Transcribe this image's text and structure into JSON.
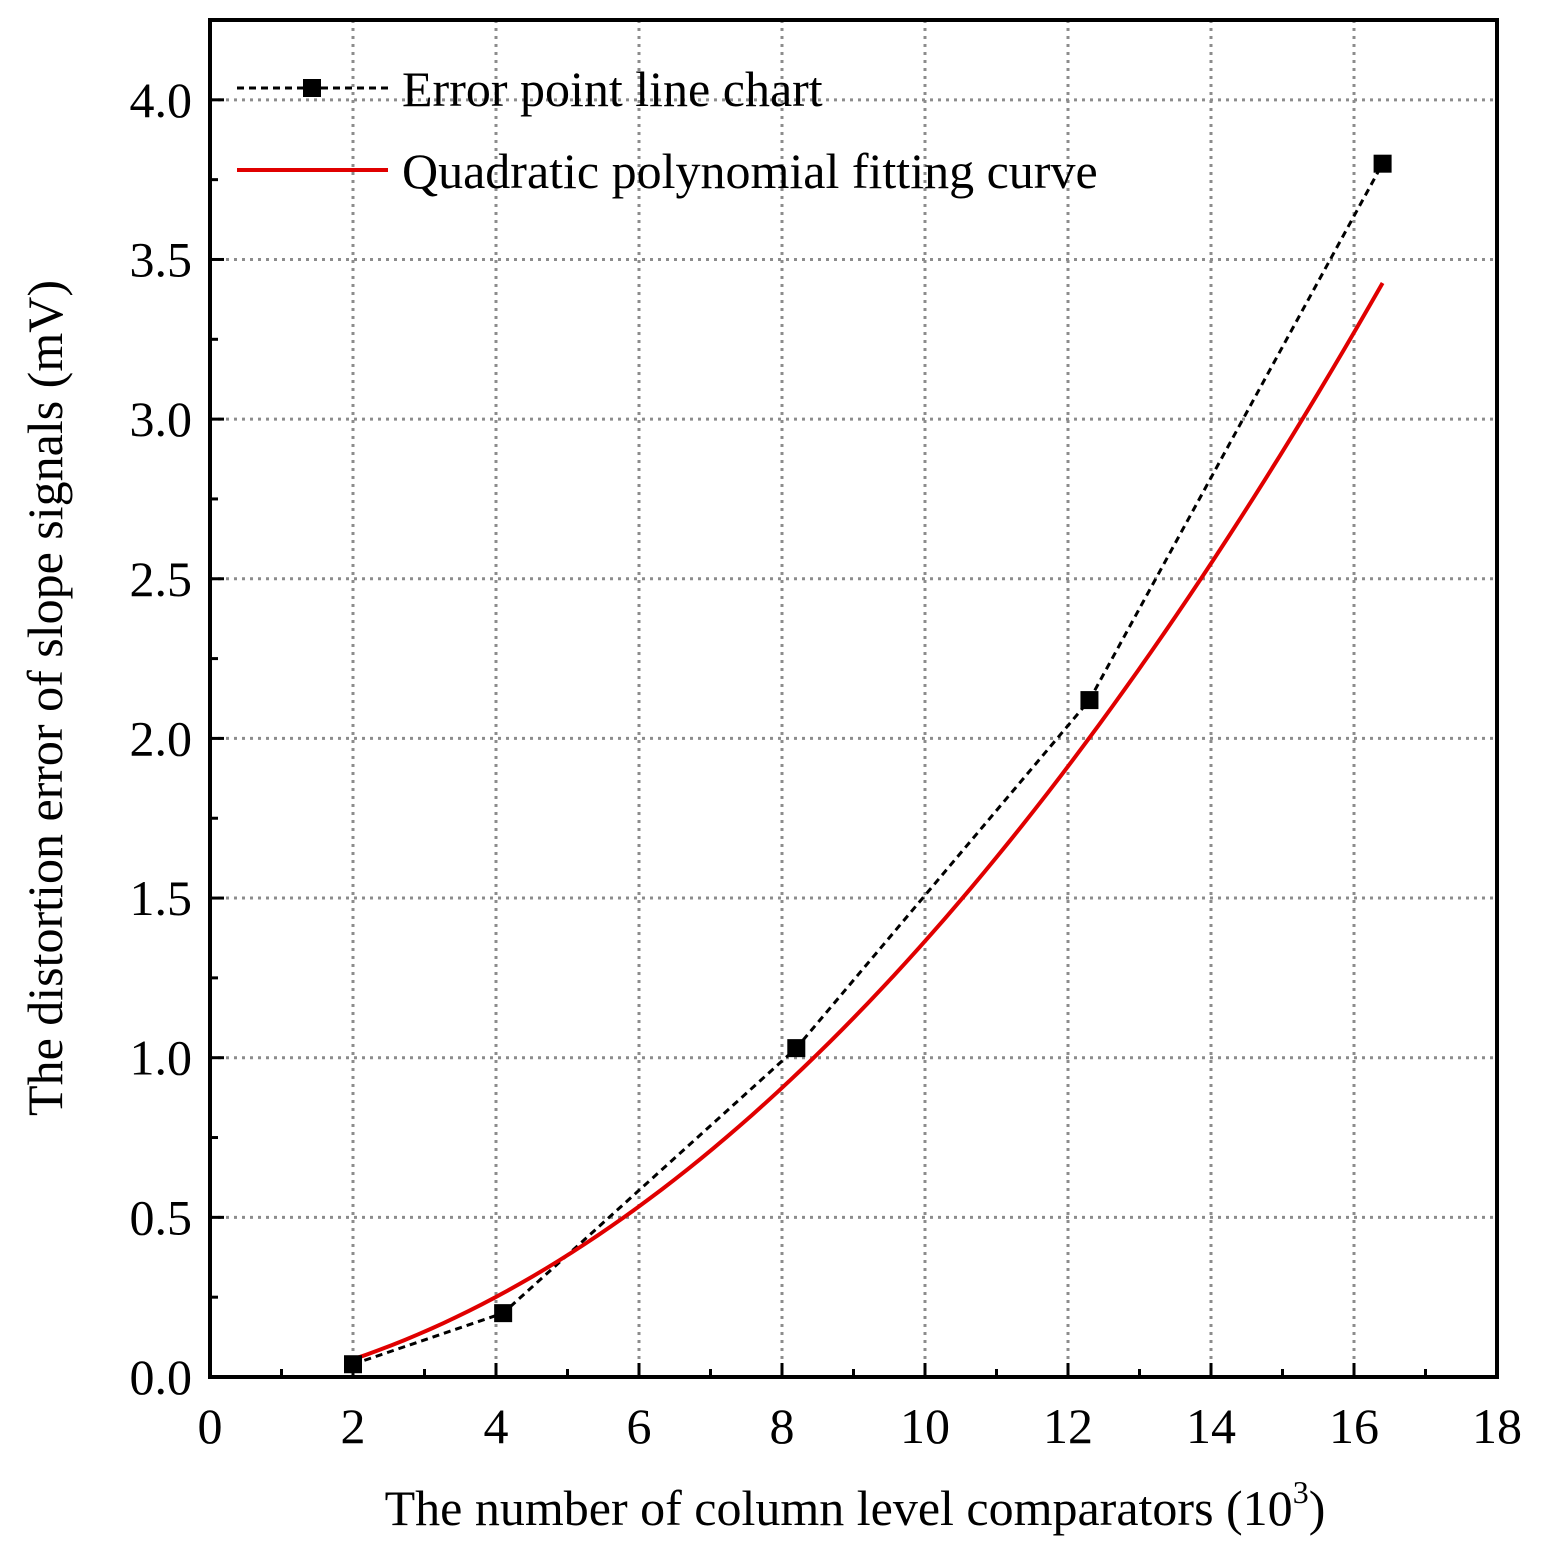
{
  "chart_data": {
    "type": "line",
    "title": "",
    "xlabel": "The number of column level comparators (10",
    "xlabel_superscript": "3",
    "xlabel_close": ")",
    "ylabel": "The distortion error of slope signals (mV)",
    "xlim": [
      0,
      18
    ],
    "ylim": [
      0,
      4.25
    ],
    "x_ticks": [
      0,
      2,
      4,
      6,
      8,
      10,
      12,
      14,
      16,
      18
    ],
    "y_ticks": [
      0.0,
      0.5,
      1.0,
      1.5,
      2.0,
      2.5,
      3.0,
      3.5,
      4.0
    ],
    "x_tick_labels": [
      "0",
      "2",
      "4",
      "6",
      "8",
      "10",
      "12",
      "14",
      "16",
      "18"
    ],
    "y_tick_labels": [
      "0.0",
      "0.5",
      "1.0",
      "1.5",
      "2.0",
      "2.5",
      "3.0",
      "3.5",
      "4.0"
    ],
    "grid": true,
    "legend_position": "top-left",
    "series": [
      {
        "name": "Error point line chart",
        "style": "dashed-with-square-markers",
        "color": "#000000",
        "x": [
          2.0,
          4.1,
          8.2,
          12.3,
          16.4
        ],
        "y": [
          0.04,
          0.2,
          1.03,
          2.12,
          3.8
        ]
      },
      {
        "name": "Quadratic polynomial fitting curve",
        "style": "solid",
        "color": "#e00000",
        "fit": {
          "a": 0.011,
          "b": 0.0317,
          "c": -0.052
        },
        "x_range": [
          2.0,
          16.4
        ]
      }
    ]
  }
}
